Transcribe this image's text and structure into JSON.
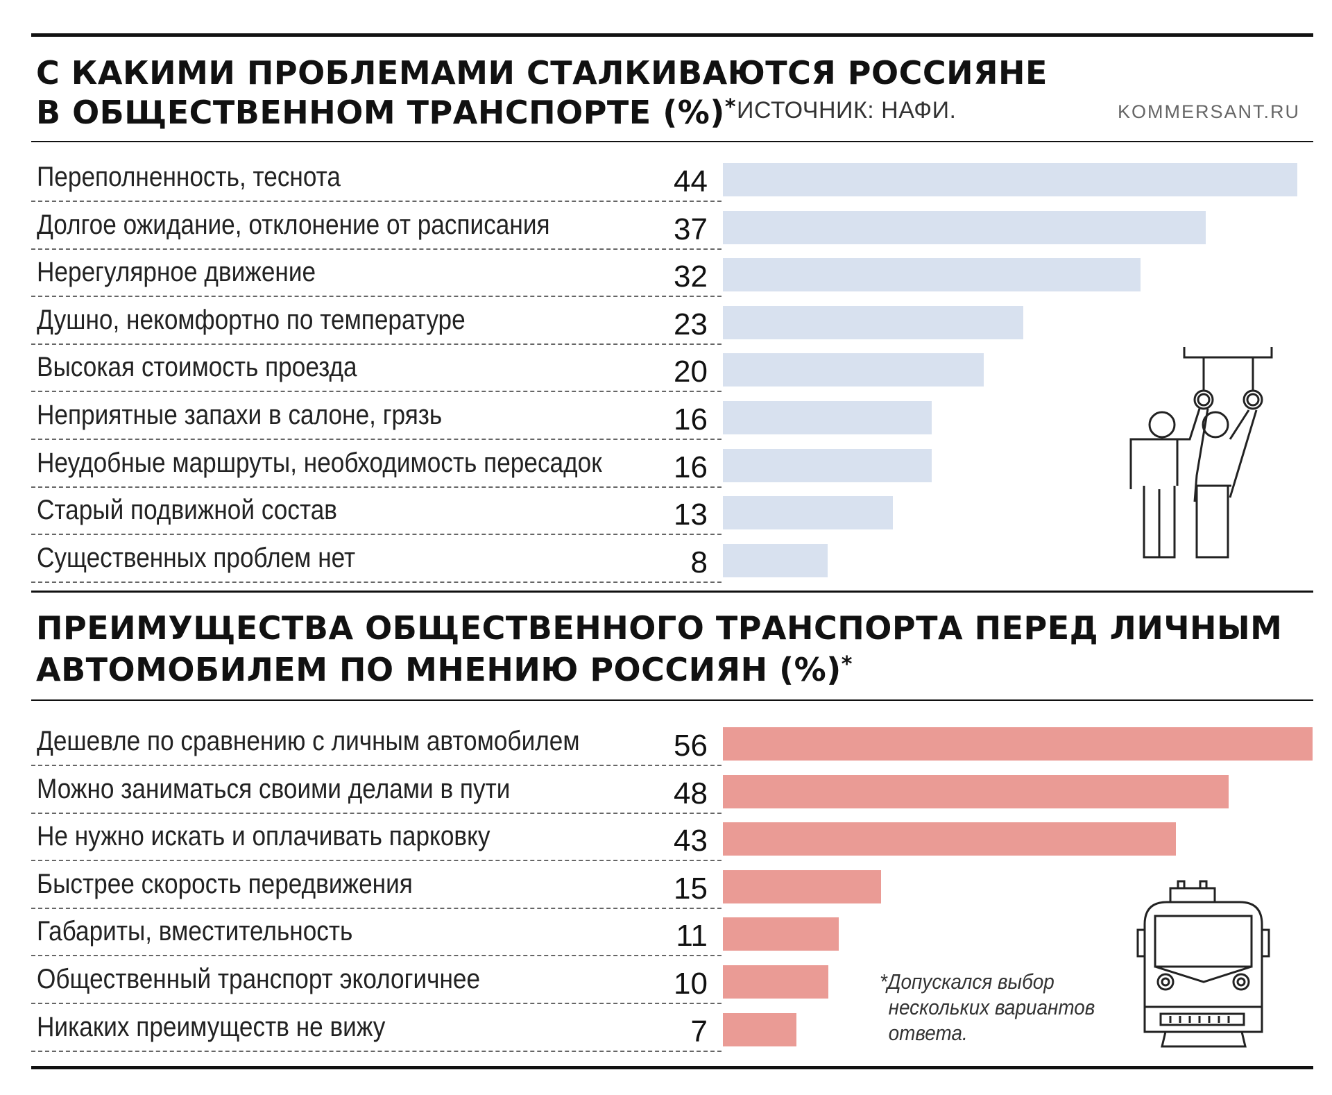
{
  "header": {
    "title_line1": "С КАКИМИ ПРОБЛЕМАМИ СТАЛКИВАЮТСЯ РОССИЯНЕ",
    "title_line2": "В ОБЩЕСТВЕННОМ ТРАНСПОРТЕ (%)",
    "asterisk": "*",
    "source": "ИСТОЧНИК: НАФИ.",
    "brand": "KOMMERSANT.RU"
  },
  "section2": {
    "title_line1": "ПРЕИМУЩЕСТВА ОБЩЕСТВЕННОГО ТРАНСПОРТА ПЕРЕД ЛИЧНЫМ",
    "title_line2": "АВТОМОБИЛЕМ ПО МНЕНИЮ РОССИЯН (%)",
    "asterisk": "*"
  },
  "footnote": {
    "line1": "*Допускался выбор",
    "line2": "нескольких вариантов",
    "line3": "ответа."
  },
  "illustrations": {
    "passengers": "standing-passengers-icon",
    "train": "train-front-icon"
  },
  "colors": {
    "problems_bar": "#d8e1ef",
    "advantages_bar": "#ea9b95"
  },
  "chart_data": [
    {
      "type": "bar",
      "orientation": "horizontal",
      "title": "С КАКИМИ ПРОБЛЕМАМИ СТАЛКИВАЮТСЯ РОССИЯНЕ В ОБЩЕСТВЕННОМ ТРАНСПОРТЕ (%)*",
      "categories": [
        "Переполненность, теснота",
        "Долгое ожидание, отклонение от расписания",
        "Нерегулярное движение",
        "Душно, некомфортно по температуре",
        "Высокая стоимость проезда",
        "Неприятные запахи в салоне, грязь",
        "Неудобные маршруты, необходимость пересадок",
        "Старый подвижной состав",
        "Существенных проблем нет"
      ],
      "values": [
        44,
        37,
        32,
        23,
        20,
        16,
        16,
        13,
        8
      ],
      "color": "#d8e1ef",
      "grid": false
    },
    {
      "type": "bar",
      "orientation": "horizontal",
      "title": "ПРЕИМУЩЕСТВА ОБЩЕСТВЕННОГО ТРАНСПОРТА ПЕРЕД ЛИЧНЫМ АВТОМОБИЛЕМ ПО МНЕНИЮ РОССИЯН (%)*",
      "categories": [
        "Дешевле по сравнению с личным автомобилем",
        "Можно заниматься своими делами в пути",
        "Не нужно искать и оплачивать парковку",
        "Быстрее скорость передвижения",
        "Габариты, вместительность",
        "Общественный транспорт экологичнее",
        "Никаких преимуществ не вижу"
      ],
      "values": [
        56,
        48,
        43,
        15,
        11,
        10,
        7
      ],
      "color": "#ea9b95",
      "grid": false
    }
  ]
}
